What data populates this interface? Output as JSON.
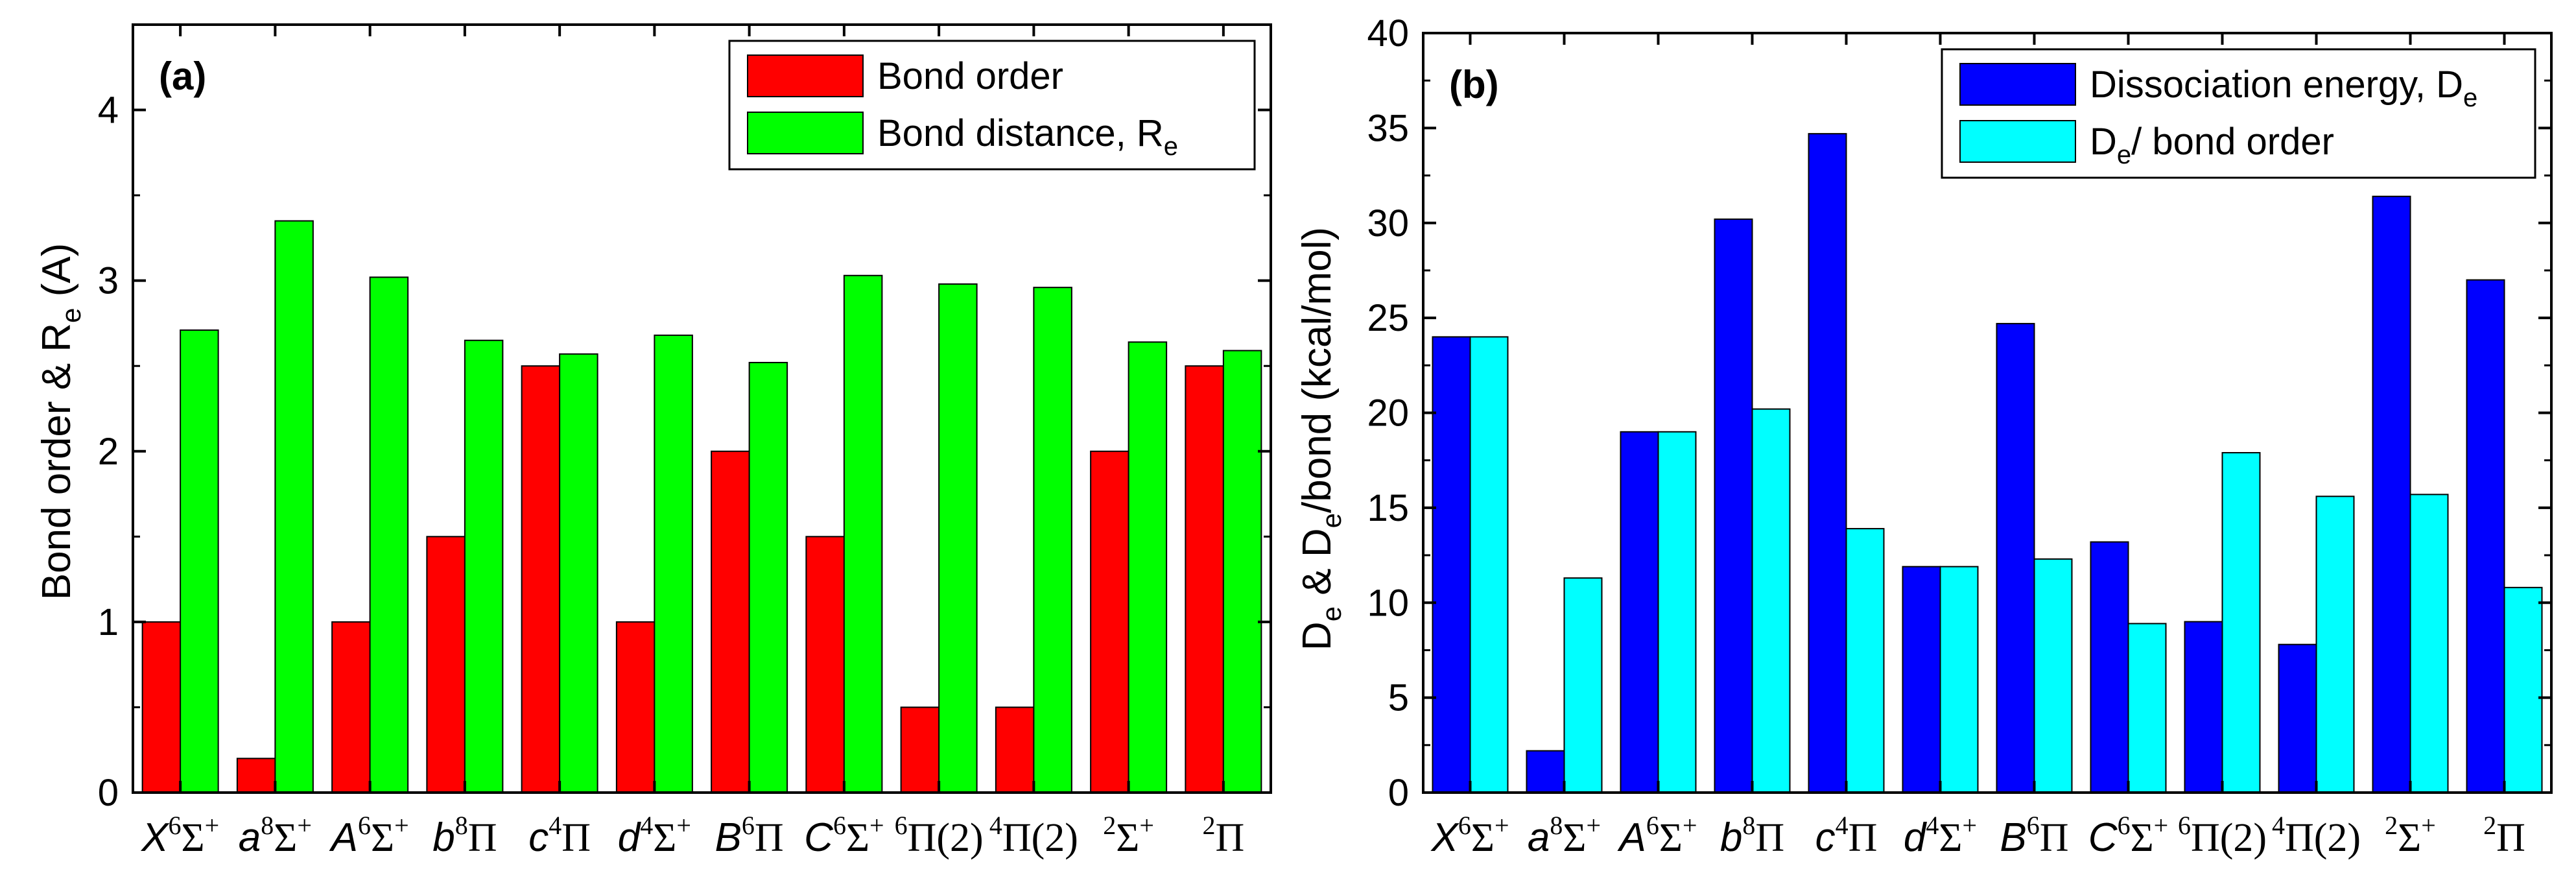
{
  "chart_data": [
    {
      "type": "bar",
      "panel_label": "(a)",
      "title": "",
      "xlabel": "",
      "ylabel": "Bond order  &  R",
      "ylabel_sub": "e",
      "ylabel_suffix": " (A)",
      "ylim": [
        0,
        4.5
      ],
      "yticks": [
        0,
        1,
        2,
        3,
        4
      ],
      "ytick_labels": [
        "0",
        "1",
        "2",
        "3",
        "4"
      ],
      "legend_position": "top-right",
      "categories": [
        "X6Σ+",
        "a8Σ+",
        "A6Σ+",
        "b8Π",
        "c4Π",
        "d4Σ+",
        "B6Π",
        "C6Σ+",
        "6Π(2)",
        "4Π(2)",
        "2Σ+",
        "2Π"
      ],
      "series": [
        {
          "name": "Bond order",
          "color": "#ff0000",
          "values": [
            1.0,
            0.2,
            1.0,
            1.5,
            2.5,
            1.0,
            2.0,
            1.5,
            0.5,
            0.5,
            2.0,
            2.5
          ]
        },
        {
          "name": "Bond distance, R",
          "name_sub": "e",
          "color": "#00ff00",
          "values": [
            2.71,
            3.35,
            3.02,
            2.65,
            2.57,
            2.68,
            2.52,
            3.03,
            2.98,
            2.96,
            2.64,
            2.59
          ]
        }
      ]
    },
    {
      "type": "bar",
      "panel_label": "(b)",
      "title": "",
      "xlabel": "",
      "ylabel_prefix": "D",
      "ylabel_prefix_sub": "e",
      "ylabel_mid": " & D",
      "ylabel_mid_sub": "e",
      "ylabel_suffix": "/bond (kcal/mol)",
      "ylim": [
        0,
        40
      ],
      "yticks": [
        0,
        5,
        10,
        15,
        20,
        25,
        30,
        35,
        40
      ],
      "ytick_labels": [
        "0",
        "5",
        "10",
        "15",
        "20",
        "25",
        "30",
        "35",
        "40"
      ],
      "legend_position": "top-right",
      "categories": [
        "X6Σ+",
        "a8Σ+",
        "A6Σ+",
        "b8Π",
        "c4Π",
        "d4Σ+",
        "B6Π",
        "C6Σ+",
        "6Π(2)",
        "4Π(2)",
        "2Σ+",
        "2Π"
      ],
      "series": [
        {
          "name": "Dissociation energy, D",
          "name_sub": "e",
          "color": "#0000ff",
          "values": [
            24.0,
            2.2,
            19.0,
            30.2,
            34.7,
            11.9,
            24.7,
            13.2,
            9.0,
            7.8,
            31.4,
            27.0
          ]
        },
        {
          "name": "D",
          "name_sub": "e",
          "name_suffix": "/ bond order",
          "color": "#00ffff",
          "values": [
            24.0,
            11.3,
            19.0,
            20.2,
            13.9,
            11.9,
            12.3,
            8.9,
            17.9,
            15.6,
            15.7,
            10.8
          ]
        }
      ]
    }
  ],
  "category_display": [
    {
      "pre": "",
      "sup": "6",
      "main_italic": "X",
      "tail": "Σ",
      "tail_sup": "+"
    },
    {
      "pre": "",
      "sup": "8",
      "main_italic": "a",
      "tail": "Σ",
      "tail_sup": "+"
    },
    {
      "pre": "",
      "sup": "6",
      "main_italic": "A",
      "tail": "Σ",
      "tail_sup": "+"
    },
    {
      "pre": "",
      "sup": "8",
      "main_italic": "b",
      "tail": "Π",
      "tail_sup": ""
    },
    {
      "pre": "",
      "sup": "4",
      "main_italic": "c",
      "tail": "Π",
      "tail_sup": ""
    },
    {
      "pre": "",
      "sup": "4",
      "main_italic": "d",
      "tail": "Σ",
      "tail_sup": "+"
    },
    {
      "pre": "",
      "sup": "6",
      "main_italic": "B",
      "tail": "Π",
      "tail_sup": ""
    },
    {
      "pre": "",
      "sup": "6",
      "main_italic": "C",
      "tail": "Σ",
      "tail_sup": "+"
    },
    {
      "pre": "6",
      "sup": "",
      "main_italic": "",
      "tail": "Π(2)",
      "tail_sup": ""
    },
    {
      "pre": "4",
      "sup": "",
      "main_italic": "",
      "tail": "Π(2)",
      "tail_sup": ""
    },
    {
      "pre": "2",
      "sup": "",
      "main_italic": "",
      "tail": "Σ",
      "tail_sup": "+"
    },
    {
      "pre": "2",
      "sup": "",
      "main_italic": "",
      "tail": "Π",
      "tail_sup": ""
    }
  ]
}
